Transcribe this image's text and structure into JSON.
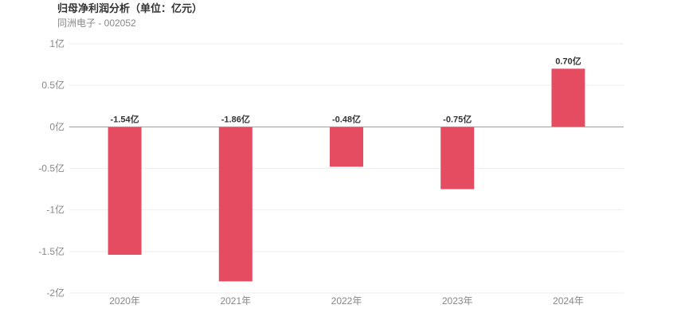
{
  "header": {
    "title": "归母净利润分析（单位：亿元）",
    "subtitle": "同洲电子 - 002052"
  },
  "colors": {
    "bar": "#e64c61",
    "grid": "#eeeeee",
    "zero_line": "#999999"
  },
  "chart_data": {
    "type": "bar",
    "title": "归母净利润分析（单位：亿元）",
    "subtitle": "同洲电子 - 002052",
    "categories": [
      "2020年",
      "2021年",
      "2022年",
      "2023年",
      "2024年"
    ],
    "values": [
      -1.54,
      -1.86,
      -0.48,
      -0.75,
      0.7
    ],
    "value_labels": [
      "-1.54亿",
      "-1.86亿",
      "-0.48亿",
      "-0.75亿",
      "0.70亿"
    ],
    "ylim": [
      -2,
      1
    ],
    "yticks": [
      1,
      0.5,
      0,
      -0.5,
      -1,
      -1.5,
      -2
    ],
    "ytick_labels": [
      "1亿",
      "0.5亿",
      "0亿",
      "-0.5亿",
      "-1亿",
      "-1.5亿",
      "-2亿"
    ],
    "grid": true,
    "legend": false
  }
}
